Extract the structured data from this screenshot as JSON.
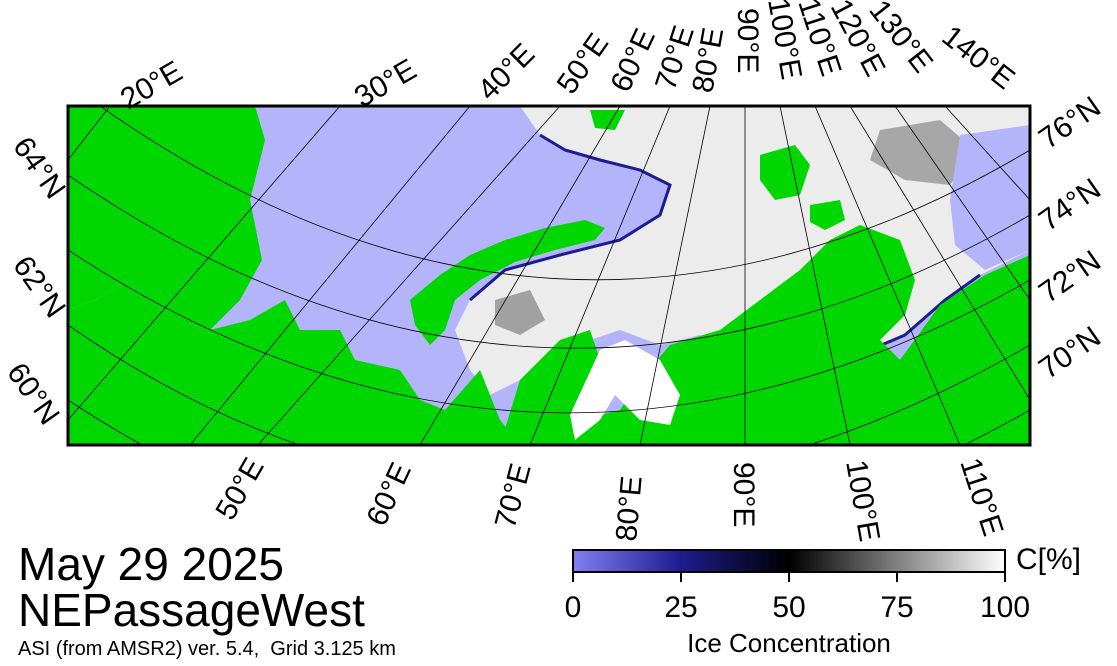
{
  "map": {
    "colors": {
      "land": "#00d700",
      "open_water": "#b4b4fa",
      "ice_low": "#4040c0",
      "ice_mid": "#000000",
      "ice_high": "#ffffff",
      "grid": "#000000",
      "missing": "#a0a0a0"
    },
    "top_longitude_labels": [
      "20°E",
      "30°E",
      "40°E",
      "50°E",
      "60°E",
      "70°E",
      "80°E",
      "90°E",
      "100°E",
      "110°E",
      "120°E",
      "130°E",
      "140°E"
    ],
    "bottom_longitude_labels": [
      "50°E",
      "60°E",
      "70°E",
      "80°E",
      "90°E",
      "100°E",
      "110°E"
    ],
    "left_latitude_labels": [
      "64°N",
      "62°N",
      "60°N"
    ],
    "right_latitude_labels": [
      "76°N",
      "74°N",
      "72°N",
      "70°N"
    ]
  },
  "footer": {
    "date": "May 29 2025",
    "region": "NEPassageWest",
    "product": "ASI (from AMSR2) ver. 5.4,  Grid 3.125 km"
  },
  "colorbar": {
    "unit": "C[%]",
    "title": "Ice Concentration",
    "ticks": [
      "0",
      "25",
      "50",
      "75",
      "100"
    ],
    "range": [
      0,
      100
    ]
  }
}
